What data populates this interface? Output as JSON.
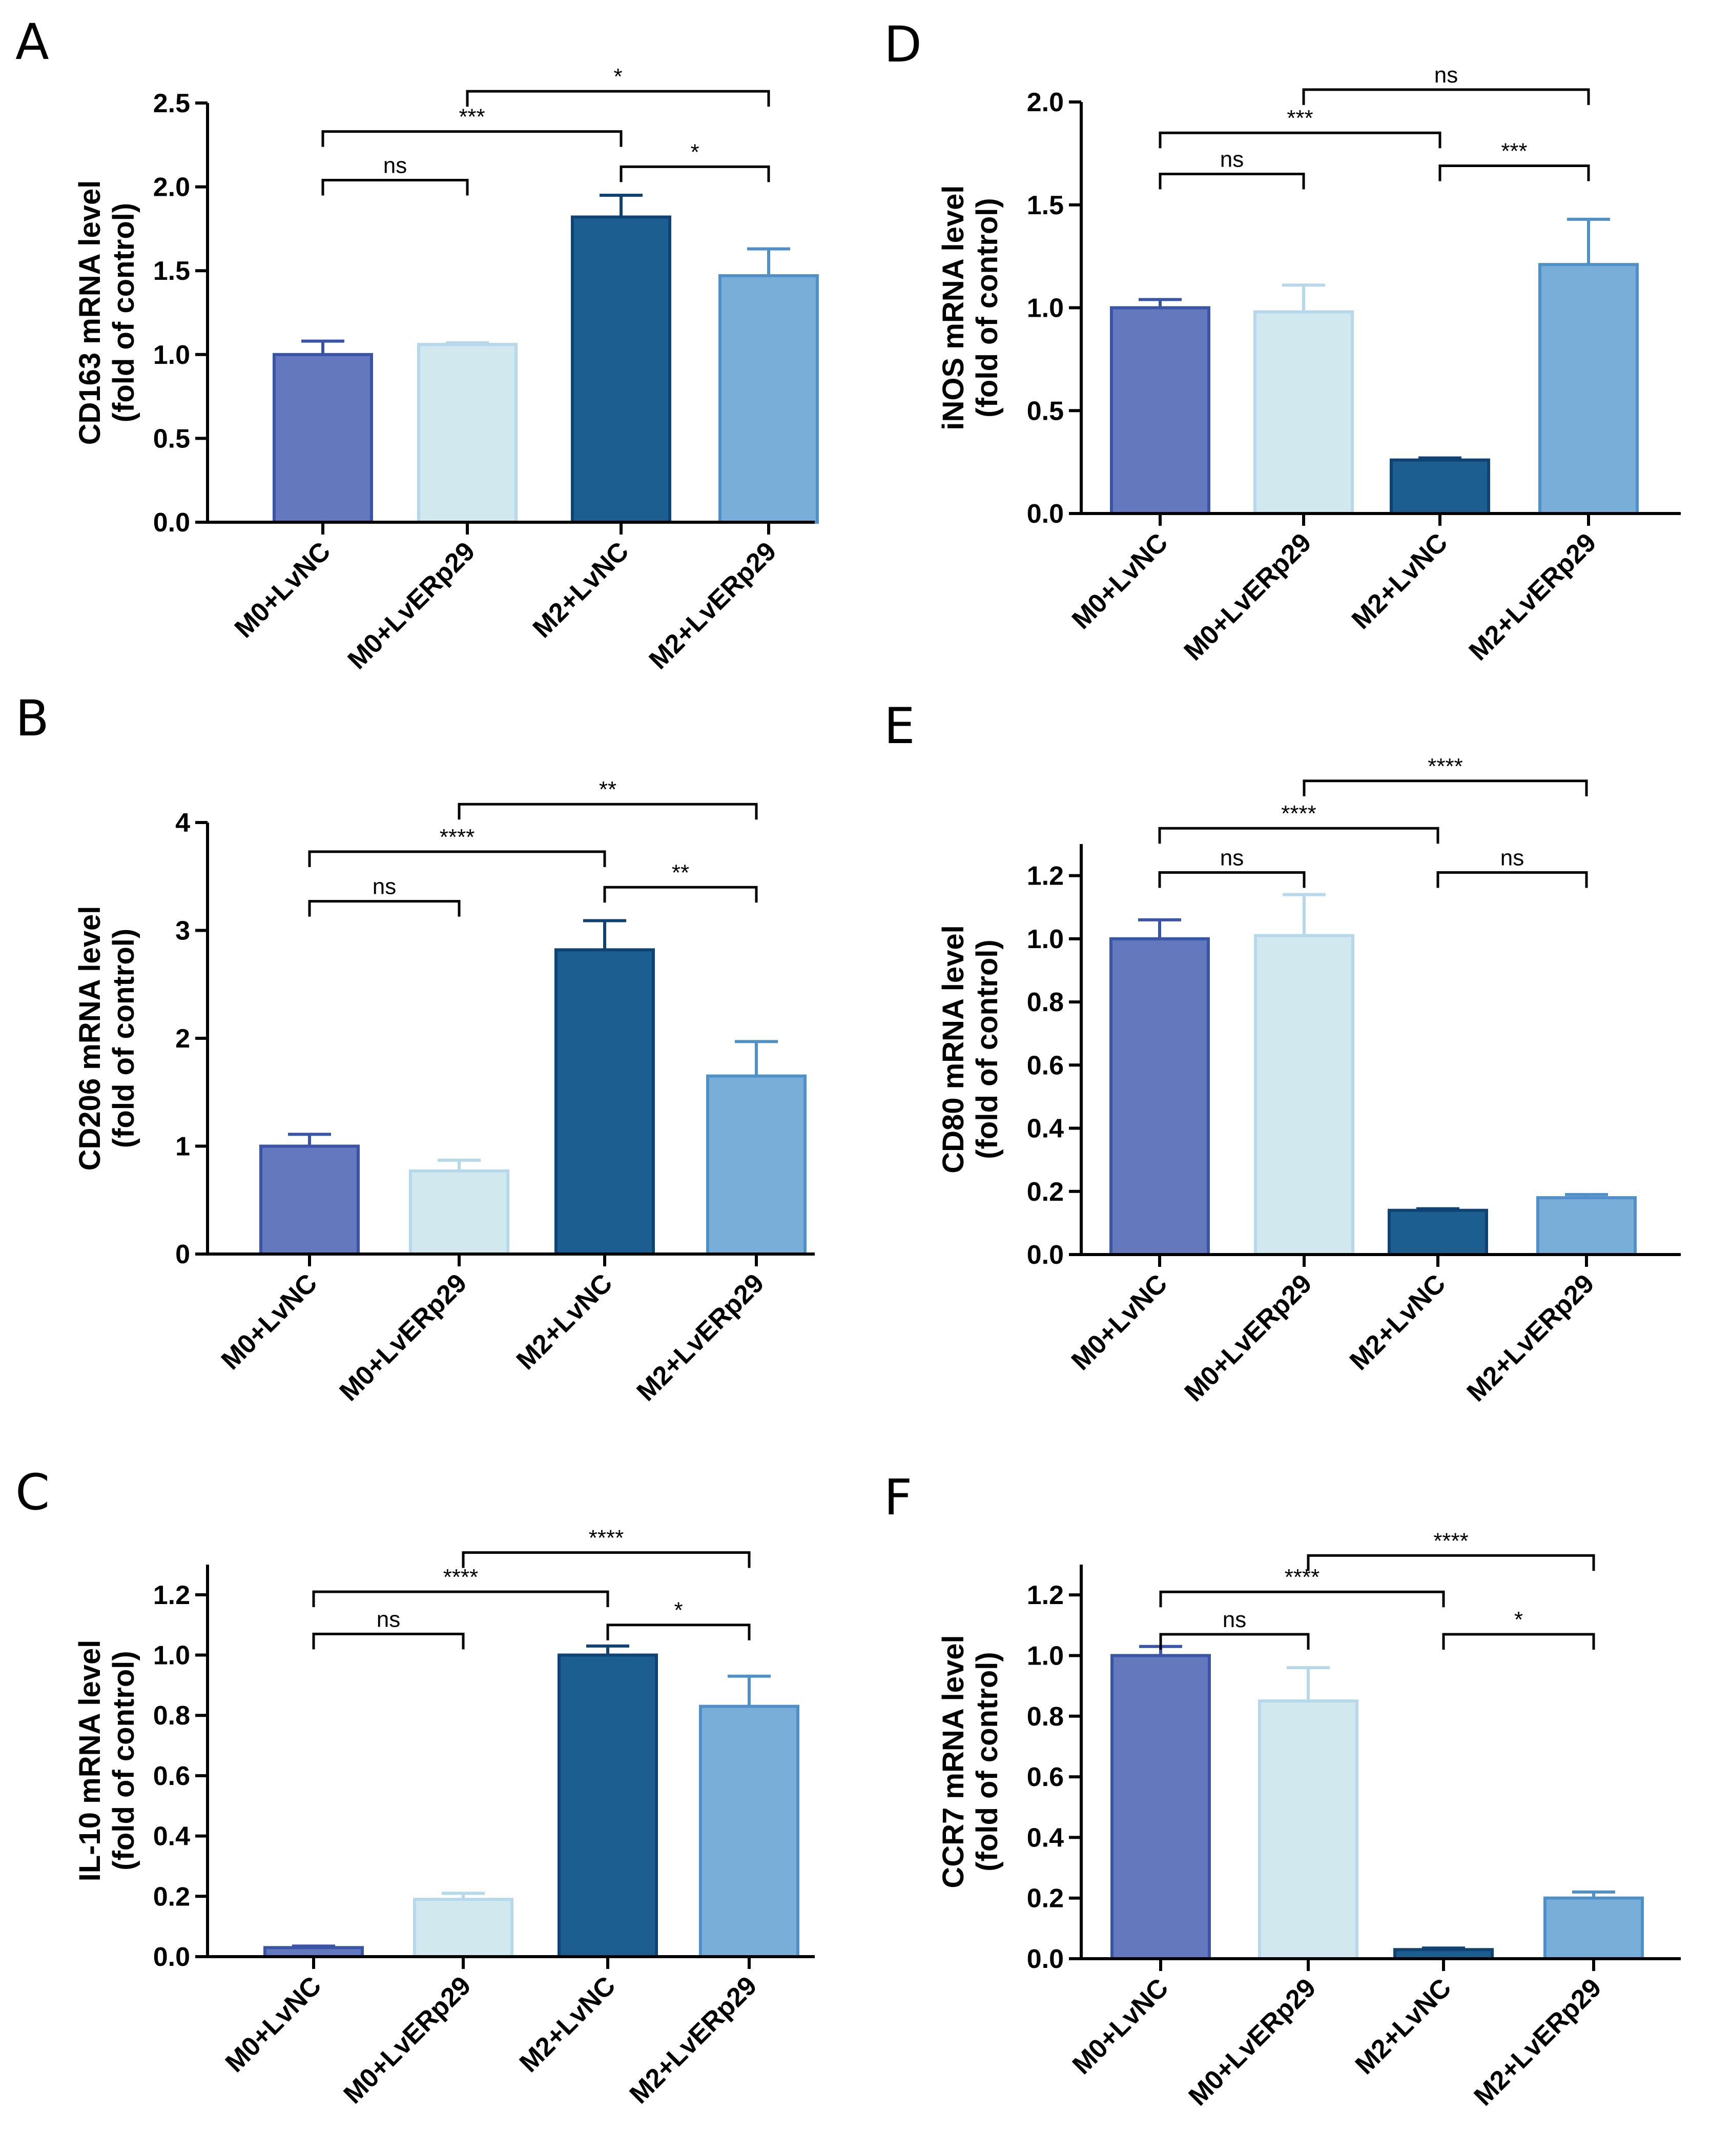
{
  "chart_data": [
    {
      "id": "A",
      "panel_label": "A",
      "type": "bar",
      "ylabel_line1": "CD163 mRNA level",
      "ylabel_line2": "(fold of control)",
      "ylim": [
        0,
        2.5
      ],
      "ticks": [
        0.0,
        0.5,
        1.0,
        1.5,
        2.0,
        2.5
      ],
      "tick_decimals": 1,
      "categories": [
        "M0+LvNC",
        "M0+LvERp29",
        "M2+LvNC",
        "M2+LvERp29"
      ],
      "values": [
        1.0,
        1.06,
        1.82,
        1.47
      ],
      "errors": [
        0.08,
        0.01,
        0.13,
        0.16
      ],
      "significance": [
        {
          "from": 0,
          "to": 1,
          "label": "ns",
          "y": 2.04
        },
        {
          "from": 0,
          "to": 2,
          "label": "***",
          "y": 2.33
        },
        {
          "from": 2,
          "to": 3,
          "label": "*",
          "y": 2.12
        },
        {
          "from": 1,
          "to": 3,
          "label": "*",
          "y": 2.57
        }
      ]
    },
    {
      "id": "B",
      "panel_label": "B",
      "type": "bar",
      "ylabel_line1": "CD206 mRNA level",
      "ylabel_line2": "(fold of control)",
      "ylim": [
        0,
        4
      ],
      "ticks": [
        0,
        1,
        2,
        3,
        4
      ],
      "tick_decimals": 0,
      "categories": [
        "M0+LvNC",
        "M0+LvERp29",
        "M2+LvNC",
        "M2+LvERp29"
      ],
      "values": [
        1.0,
        0.77,
        2.82,
        1.65
      ],
      "errors": [
        0.11,
        0.1,
        0.27,
        0.32
      ],
      "significance": [
        {
          "from": 0,
          "to": 1,
          "label": "ns",
          "y": 3.27
        },
        {
          "from": 0,
          "to": 2,
          "label": "****",
          "y": 3.73
        },
        {
          "from": 2,
          "to": 3,
          "label": "**",
          "y": 3.4
        },
        {
          "from": 1,
          "to": 3,
          "label": "**",
          "y": 4.17
        }
      ]
    },
    {
      "id": "C",
      "panel_label": "C",
      "type": "bar",
      "ylabel_line1": "IL-10 mRNA level",
      "ylabel_line2": "(fold of control)",
      "ylim": [
        0,
        1.3
      ],
      "ticks": [
        0.0,
        0.2,
        0.4,
        0.6,
        0.8,
        1.0,
        1.2
      ],
      "tick_decimals": 1,
      "categories": [
        "M0+LvNC",
        "M0+LvERp29",
        "M2+LvNC",
        "M2+LvERp29"
      ],
      "values": [
        0.03,
        0.19,
        1.0,
        0.83
      ],
      "errors": [
        0.005,
        0.02,
        0.03,
        0.1
      ],
      "significance": [
        {
          "from": 0,
          "to": 1,
          "label": "ns",
          "y": 1.07
        },
        {
          "from": 0,
          "to": 2,
          "label": "****",
          "y": 1.21
        },
        {
          "from": 2,
          "to": 3,
          "label": "*",
          "y": 1.1
        },
        {
          "from": 1,
          "to": 3,
          "label": "****",
          "y": 1.34
        }
      ]
    },
    {
      "id": "D",
      "panel_label": "D",
      "type": "bar",
      "ylabel_line1": "iNOS mRNA level",
      "ylabel_line2": "(fold of control)",
      "ylim": [
        0,
        2.0
      ],
      "ticks": [
        0.0,
        0.5,
        1.0,
        1.5,
        2.0
      ],
      "tick_decimals": 1,
      "categories": [
        "M0+LvNC",
        "M0+LvERp29",
        "M2+LvNC",
        "M2+LvERp29"
      ],
      "values": [
        1.0,
        0.98,
        0.26,
        1.21
      ],
      "errors": [
        0.04,
        0.13,
        0.01,
        0.22
      ],
      "significance": [
        {
          "from": 0,
          "to": 1,
          "label": "ns",
          "y": 1.65
        },
        {
          "from": 0,
          "to": 2,
          "label": "***",
          "y": 1.85
        },
        {
          "from": 2,
          "to": 3,
          "label": "***",
          "y": 1.69
        },
        {
          "from": 1,
          "to": 3,
          "label": "ns",
          "y": 2.06
        }
      ]
    },
    {
      "id": "E",
      "panel_label": "E",
      "type": "bar",
      "ylabel_line1": "CD80 mRNA level",
      "ylabel_line2": "(fold of control)",
      "ylim": [
        0,
        1.3
      ],
      "ticks": [
        0.0,
        0.2,
        0.4,
        0.6,
        0.8,
        1.0,
        1.2
      ],
      "tick_decimals": 1,
      "categories": [
        "M0+LvNC",
        "M0+LvERp29",
        "M2+LvNC",
        "M2+LvERp29"
      ],
      "values": [
        1.0,
        1.01,
        0.14,
        0.18
      ],
      "errors": [
        0.06,
        0.13,
        0.005,
        0.01
      ],
      "significance": [
        {
          "from": 0,
          "to": 1,
          "label": "ns",
          "y": 1.21
        },
        {
          "from": 0,
          "to": 2,
          "label": "****",
          "y": 1.35
        },
        {
          "from": 2,
          "to": 3,
          "label": "ns",
          "y": 1.21
        },
        {
          "from": 1,
          "to": 3,
          "label": "****",
          "y": 1.5
        }
      ]
    },
    {
      "id": "F",
      "panel_label": "F",
      "type": "bar",
      "ylabel_line1": "CCR7 mRNA level",
      "ylabel_line2": "(fold of control)",
      "ylim": [
        0,
        1.3
      ],
      "ticks": [
        0.0,
        0.2,
        0.4,
        0.6,
        0.8,
        1.0,
        1.2
      ],
      "tick_decimals": 1,
      "categories": [
        "M0+LvNC",
        "M0+LvERp29",
        "M2+LvNC",
        "M2+LvERp29"
      ],
      "values": [
        1.0,
        0.85,
        0.03,
        0.2
      ],
      "errors": [
        0.03,
        0.11,
        0.005,
        0.02
      ],
      "significance": [
        {
          "from": 0,
          "to": 1,
          "label": "ns",
          "y": 1.07
        },
        {
          "from": 0,
          "to": 2,
          "label": "****",
          "y": 1.21
        },
        {
          "from": 2,
          "to": 3,
          "label": "*",
          "y": 1.07
        },
        {
          "from": 1,
          "to": 3,
          "label": "****",
          "y": 1.33
        }
      ]
    }
  ],
  "colors": {
    "bars": [
      "#6479bd",
      "#d1e8ef",
      "#1c5e8f",
      "#79aed8"
    ],
    "bar_edges": [
      "#3a55a8",
      "#b5d8ea",
      "#0f4373",
      "#4f90c8"
    ],
    "axis": "#000000"
  }
}
